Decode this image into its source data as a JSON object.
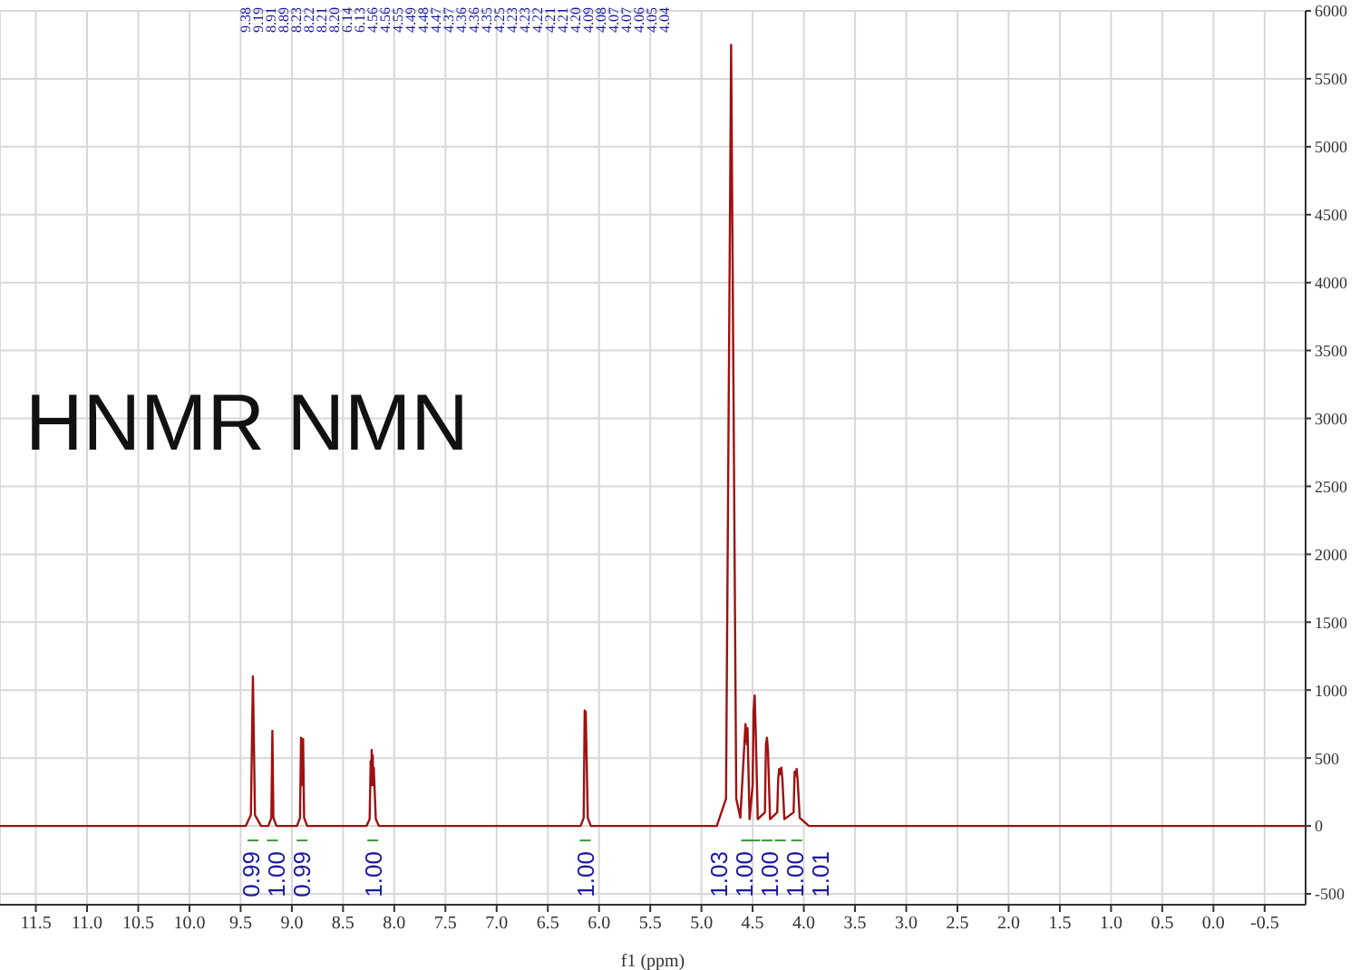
{
  "chart_data": {
    "type": "line",
    "title": "HNMR NMN",
    "xlabel": "f1 (ppm)",
    "xlim": [
      11.85,
      -0.9
    ],
    "xticks": [
      {
        "value": 11.5,
        "label": "11.5"
      },
      {
        "value": 11,
        "label": "11.0"
      },
      {
        "value": 10.5,
        "label": "10.5"
      },
      {
        "value": 10,
        "label": "10.0"
      },
      {
        "value": 9.5,
        "label": "9.5"
      },
      {
        "value": 9,
        "label": "9.0"
      },
      {
        "value": 8.5,
        "label": "8.5"
      },
      {
        "value": 8,
        "label": "8.0"
      },
      {
        "value": 7.5,
        "label": "7.5"
      },
      {
        "value": 7,
        "label": "7.0"
      },
      {
        "value": 6.5,
        "label": "6.5"
      },
      {
        "value": 6,
        "label": "6.0"
      },
      {
        "value": 5.5,
        "label": "5.5"
      },
      {
        "value": 5,
        "label": "5.0"
      },
      {
        "value": 4.5,
        "label": "4.5"
      },
      {
        "value": 4,
        "label": "4.0"
      },
      {
        "value": 3.5,
        "label": "3.5"
      },
      {
        "value": 3,
        "label": "3.0"
      },
      {
        "value": 2.5,
        "label": "2.5"
      },
      {
        "value": 2,
        "label": "2.0"
      },
      {
        "value": 1.5,
        "label": "1.5"
      },
      {
        "value": 1,
        "label": "1.0"
      },
      {
        "value": 0.5,
        "label": "0.5"
      },
      {
        "value": 0,
        "label": "0.0"
      },
      {
        "value": -0.5,
        "label": "-0.5"
      }
    ],
    "ylim": [
      -580,
      6000
    ],
    "yticks": [
      -500,
      0,
      500,
      1000,
      1500,
      2000,
      2500,
      3000,
      3500,
      4000,
      4500,
      5000,
      5500,
      6000
    ],
    "grid": true,
    "legend": false,
    "marker": "none",
    "line_style": "solid",
    "series": [
      {
        "color": "#a01010",
        "x": [
          11.85,
          9.45,
          9.4,
          9.38,
          9.36,
          9.3,
          9.23,
          9.2,
          9.19,
          9.18,
          9.15,
          8.95,
          8.92,
          8.91,
          8.9,
          8.89,
          8.88,
          8.85,
          8.27,
          8.24,
          8.23,
          8.225,
          8.22,
          8.215,
          8.21,
          8.205,
          8.2,
          8.18,
          8.15,
          6.18,
          6.15,
          6.14,
          6.13,
          6.11,
          6.08,
          4.85,
          4.76,
          4.71,
          4.66,
          4.62,
          4.57,
          4.555,
          4.55,
          4.53,
          4.5,
          4.49,
          4.48,
          4.47,
          4.45,
          4.38,
          4.37,
          4.36,
          4.35,
          4.33,
          4.26,
          4.25,
          4.24,
          4.23,
          4.22,
          4.21,
          4.19,
          4.1,
          4.09,
          4.08,
          4.07,
          4.06,
          4.04,
          3.95,
          -0.9
        ],
        "values": [
          0,
          0,
          80,
          1100,
          80,
          0,
          0,
          60,
          700,
          60,
          0,
          0,
          60,
          650,
          300,
          640,
          60,
          0,
          0,
          50,
          480,
          300,
          560,
          300,
          520,
          300,
          430,
          50,
          0,
          0,
          60,
          850,
          840,
          60,
          0,
          0,
          200,
          5750,
          200,
          60,
          750,
          600,
          720,
          50,
          300,
          850,
          960,
          700,
          50,
          100,
          600,
          650,
          550,
          50,
          100,
          350,
          420,
          380,
          430,
          350,
          50,
          100,
          400,
          370,
          420,
          330,
          60,
          0,
          0
        ]
      }
    ],
    "annotations": [
      "9.38",
      "9.19",
      "8.91",
      "8.89",
      "8.23",
      "8.22",
      "8.21",
      "8.20",
      "6.14",
      "6.13",
      "4.56",
      "4.56",
      "4.55",
      "4.49",
      "4.48",
      "4.47",
      "4.37",
      "4.36",
      "4.36",
      "4.35",
      "4.25",
      "4.23",
      "4.23",
      "4.22",
      "4.21",
      "4.21",
      "4.20",
      "4.09",
      "4.08",
      "4.07",
      "4.07",
      "4.06",
      "4.05",
      "4.04",
      {
        "text": "0.99",
        "x": 9.38,
        "y": 0
      },
      {
        "text": "1.00",
        "x": 9.19,
        "y": 0
      },
      {
        "text": "0.99",
        "x": 8.9,
        "y": 0
      },
      {
        "text": "1.00",
        "x": 8.21,
        "y": 0
      },
      {
        "text": "1.00",
        "x": 6.135,
        "y": 0
      },
      {
        "text": "1.03",
        "x": 4.56,
        "y": 0
      },
      {
        "text": "1.00",
        "x": 4.48,
        "y": 0
      },
      {
        "text": "1.00",
        "x": 4.36,
        "y": 0
      },
      {
        "text": "1.00",
        "x": 4.23,
        "y": 0
      },
      {
        "text": "1.01",
        "x": 4.07,
        "y": 0
      }
    ]
  }
}
